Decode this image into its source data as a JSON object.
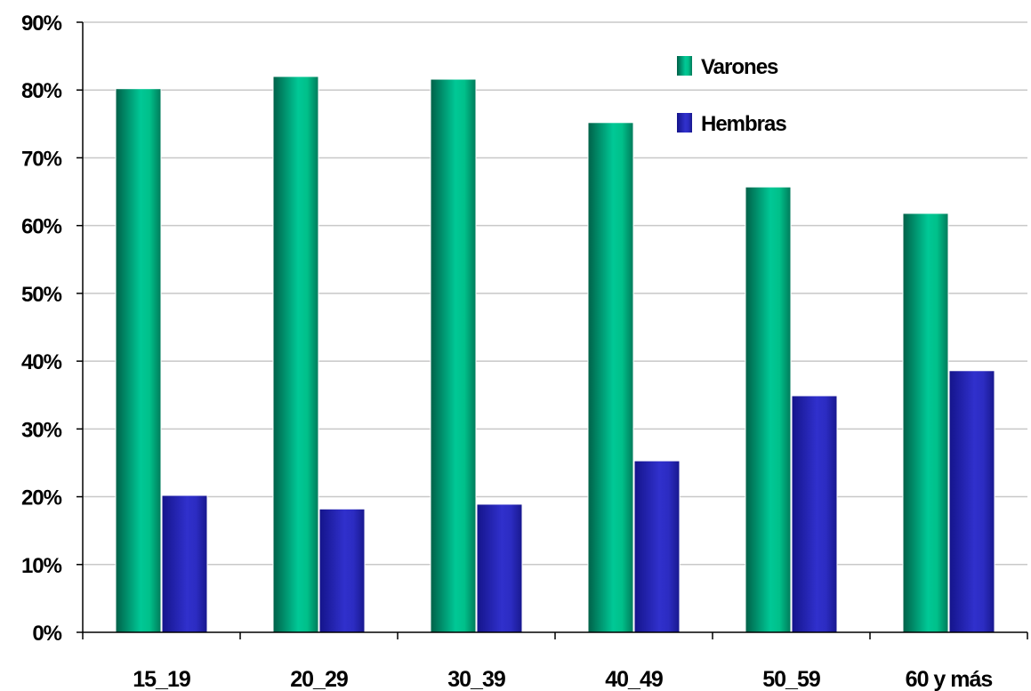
{
  "chart_data": {
    "type": "bar",
    "title": "",
    "xlabel": "",
    "ylabel": "",
    "categories": [
      "15_19",
      "20_29",
      "30_39",
      "40_49",
      "50_59",
      "60 y más"
    ],
    "series": [
      {
        "name": "Varones",
        "values": [
          80.2,
          82.0,
          81.6,
          75.2,
          65.7,
          61.8
        ],
        "color": "#00c08a"
      },
      {
        "name": "Hembras",
        "values": [
          20.2,
          18.2,
          18.9,
          25.3,
          34.9,
          38.6
        ],
        "color": "#2b2bc4"
      }
    ],
    "ylim": [
      0,
      90
    ],
    "yticks": [
      {
        "value": 0,
        "label": "0%"
      },
      {
        "value": 10,
        "label": "10%"
      },
      {
        "value": 20,
        "label": "20%"
      },
      {
        "value": 30,
        "label": "30%"
      },
      {
        "value": 40,
        "label": "40%"
      },
      {
        "value": 50,
        "label": "50%"
      },
      {
        "value": 60,
        "label": "60%"
      },
      {
        "value": 70,
        "label": "70%"
      },
      {
        "value": 80,
        "label": "80%"
      },
      {
        "value": 90,
        "label": "90%"
      }
    ],
    "grid": true,
    "legend_position": "top-right"
  }
}
